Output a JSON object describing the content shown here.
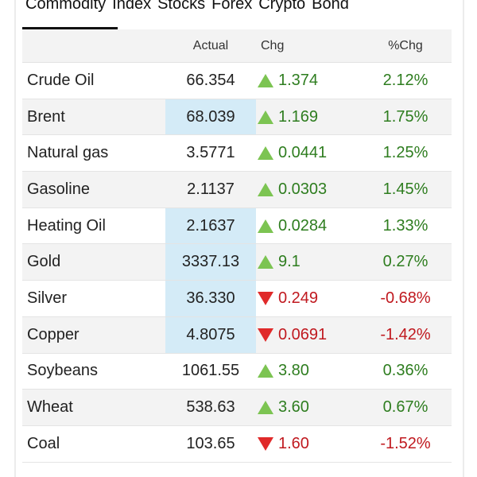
{
  "tabs": [
    {
      "label": "Commodity",
      "active": true
    },
    {
      "label": "Index"
    },
    {
      "label": "Stocks"
    },
    {
      "label": "Forex"
    },
    {
      "label": "Crypto"
    },
    {
      "label": "Bond"
    }
  ],
  "table": {
    "headers": {
      "name": "",
      "actual": "Actual",
      "chg": "Chg",
      "pct": "%Chg"
    },
    "rows": [
      {
        "name": "Crude Oil",
        "actual": "66.354",
        "chg": "1.374",
        "pct": "2.12%",
        "dir": "up",
        "highlight": false
      },
      {
        "name": "Brent",
        "actual": "68.039",
        "chg": "1.169",
        "pct": "1.75%",
        "dir": "up",
        "highlight": true
      },
      {
        "name": "Natural gas",
        "actual": "3.5771",
        "chg": "0.0441",
        "pct": "1.25%",
        "dir": "up",
        "highlight": false
      },
      {
        "name": "Gasoline",
        "actual": "2.1137",
        "chg": "0.0303",
        "pct": "1.45%",
        "dir": "up",
        "highlight": false
      },
      {
        "name": "Heating Oil",
        "actual": "2.1637",
        "chg": "0.0284",
        "pct": "1.33%",
        "dir": "up",
        "highlight": true
      },
      {
        "name": "Gold",
        "actual": "3337.13",
        "chg": "9.1",
        "pct": "0.27%",
        "dir": "up",
        "highlight": true
      },
      {
        "name": "Silver",
        "actual": "36.330",
        "chg": "0.249",
        "pct": "-0.68%",
        "dir": "down",
        "highlight": true
      },
      {
        "name": "Copper",
        "actual": "4.8075",
        "chg": "0.0691",
        "pct": "-1.42%",
        "dir": "down",
        "highlight": true
      },
      {
        "name": "Soybeans",
        "actual": "1061.55",
        "chg": "3.80",
        "pct": "0.36%",
        "dir": "up",
        "highlight": false
      },
      {
        "name": "Wheat",
        "actual": "538.63",
        "chg": "3.60",
        "pct": "0.67%",
        "dir": "up",
        "highlight": false
      },
      {
        "name": "Coal",
        "actual": "103.65",
        "chg": "1.60",
        "pct": "-1.52%",
        "dir": "down",
        "highlight": false
      }
    ]
  },
  "colors": {
    "up": "#2e7d1f",
    "down": "#c0191f",
    "up_arrow": "#7cc452",
    "down_arrow": "#e02a2a",
    "highlight": "#d4ebf7"
  }
}
